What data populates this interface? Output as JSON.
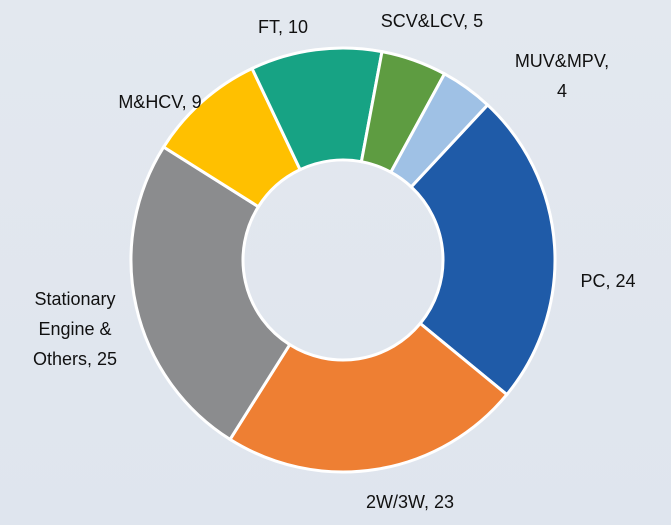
{
  "chart_data": {
    "type": "donut",
    "labels": [
      [
        "PC, 24"
      ],
      [
        "2W/3W, 23"
      ],
      [
        "Stationary",
        "Engine &",
        "Others, 25"
      ],
      [
        "M&HCV, 9"
      ],
      [
        "FT, 10"
      ],
      [
        "SCV&LCV, 5"
      ],
      [
        "MUV&MPV,",
        "4"
      ]
    ],
    "values": [
      24,
      23,
      25,
      9,
      10,
      5,
      4
    ],
    "colors": [
      "#1f5ba8",
      "#ee7f33",
      "#8b8c8e",
      "#ffc000",
      "#17a384",
      "#5e9c41",
      "#9fc1e5"
    ]
  }
}
